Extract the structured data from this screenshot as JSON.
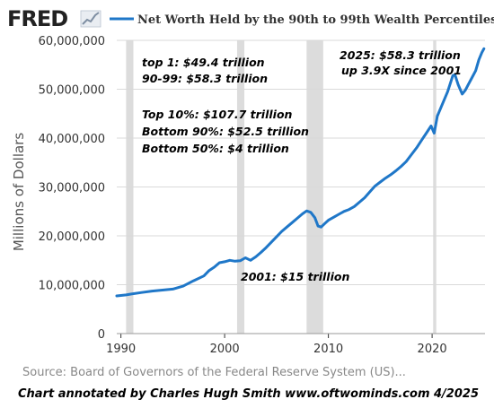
{
  "brand": {
    "logo_text": "FRED"
  },
  "colors": {
    "line": "#1f77c8",
    "recession": "#dcdcdc",
    "grid": "#d9d9d9",
    "axis": "#000000"
  },
  "source": "Source: Board of Governors of the Federal Reserve System (US)...",
  "credit": "Chart annotated by Charles Hugh Smith  www.oftwominds.com  4/2025",
  "annotations": [
    {
      "text": "top 1:  $49.4 trillion"
    },
    {
      "text": "90-99: $58.3 trillion"
    },
    {
      "text": "Top 10%: $107.7 trillion"
    },
    {
      "text": "Bottom 90%: $52.5 trillion"
    },
    {
      "text": "Bottom 50%: $4 trillion"
    },
    {
      "text": "2001: $15 trillion"
    },
    {
      "text": "2025: $58.3 trillion"
    },
    {
      "text": "up 3.9X since 2001"
    }
  ],
  "chart_data": {
    "type": "line",
    "title": "",
    "xlabel": "",
    "ylabel": "Millions of Dollars",
    "xlim": [
      1989.6,
      2025.1
    ],
    "ylim": [
      0,
      60000000
    ],
    "grid": "horizontal",
    "legend_position": "top",
    "x_ticks": [
      1990,
      2000,
      2010,
      2020
    ],
    "x_tick_labels": [
      "1990",
      "2000",
      "2010",
      "2020"
    ],
    "y_ticks": [
      0,
      10000000,
      20000000,
      30000000,
      40000000,
      50000000,
      60000000
    ],
    "y_tick_labels": [
      "0",
      "10,000,000",
      "20,000,000",
      "30,000,000",
      "40,000,000",
      "50,000,000",
      "60,000,000"
    ],
    "recessions": [
      [
        1990.5,
        1991.2
      ],
      [
        2001.2,
        2001.9
      ],
      [
        2007.9,
        2009.5
      ],
      [
        2020.1,
        2020.4
      ]
    ],
    "series": [
      {
        "name": "Net Worth Held by the 90th to 99th Wealth Percentiles",
        "x": [
          1989.6,
          1990.5,
          1991,
          1992,
          1993,
          1994,
          1995,
          1996,
          1997,
          1998,
          1998.5,
          1999,
          1999.5,
          2000,
          2000.5,
          2001,
          2001.5,
          2002,
          2002.5,
          2003,
          2003.5,
          2004,
          2004.5,
          2005,
          2005.5,
          2006,
          2006.5,
          2007,
          2007.5,
          2007.9,
          2008.3,
          2008.7,
          2009,
          2009.3,
          2009.7,
          2010,
          2010.5,
          2011,
          2011.5,
          2012,
          2012.5,
          2013,
          2013.5,
          2014,
          2014.5,
          2015,
          2015.5,
          2016,
          2016.5,
          2017,
          2017.5,
          2018,
          2018.5,
          2019,
          2019.5,
          2019.9,
          2020.2,
          2020.5,
          2021,
          2021.5,
          2022,
          2022.2,
          2022.5,
          2022.9,
          2023.2,
          2023.5,
          2023.8,
          2024.2,
          2024.5,
          2024.8,
          2025.0
        ],
        "values": [
          7700000,
          7900000,
          8100000,
          8400000,
          8700000,
          8900000,
          9100000,
          9700000,
          10800000,
          11800000,
          12900000,
          13600000,
          14500000,
          14700000,
          15000000,
          14800000,
          14900000,
          15500000,
          15000000,
          15700000,
          16600000,
          17600000,
          18700000,
          19800000,
          20900000,
          21800000,
          22700000,
          23600000,
          24500000,
          25100000,
          24800000,
          23700000,
          22000000,
          21800000,
          22600000,
          23200000,
          23800000,
          24400000,
          25000000,
          25400000,
          26000000,
          26900000,
          27800000,
          29000000,
          30200000,
          31000000,
          31800000,
          32500000,
          33300000,
          34200000,
          35200000,
          36600000,
          38000000,
          39600000,
          41200000,
          42500000,
          41000000,
          44500000,
          47000000,
          49500000,
          52800000,
          53000000,
          51000000,
          49000000,
          49800000,
          51000000,
          52200000,
          53800000,
          56000000,
          57500000,
          58300000
        ]
      }
    ]
  }
}
